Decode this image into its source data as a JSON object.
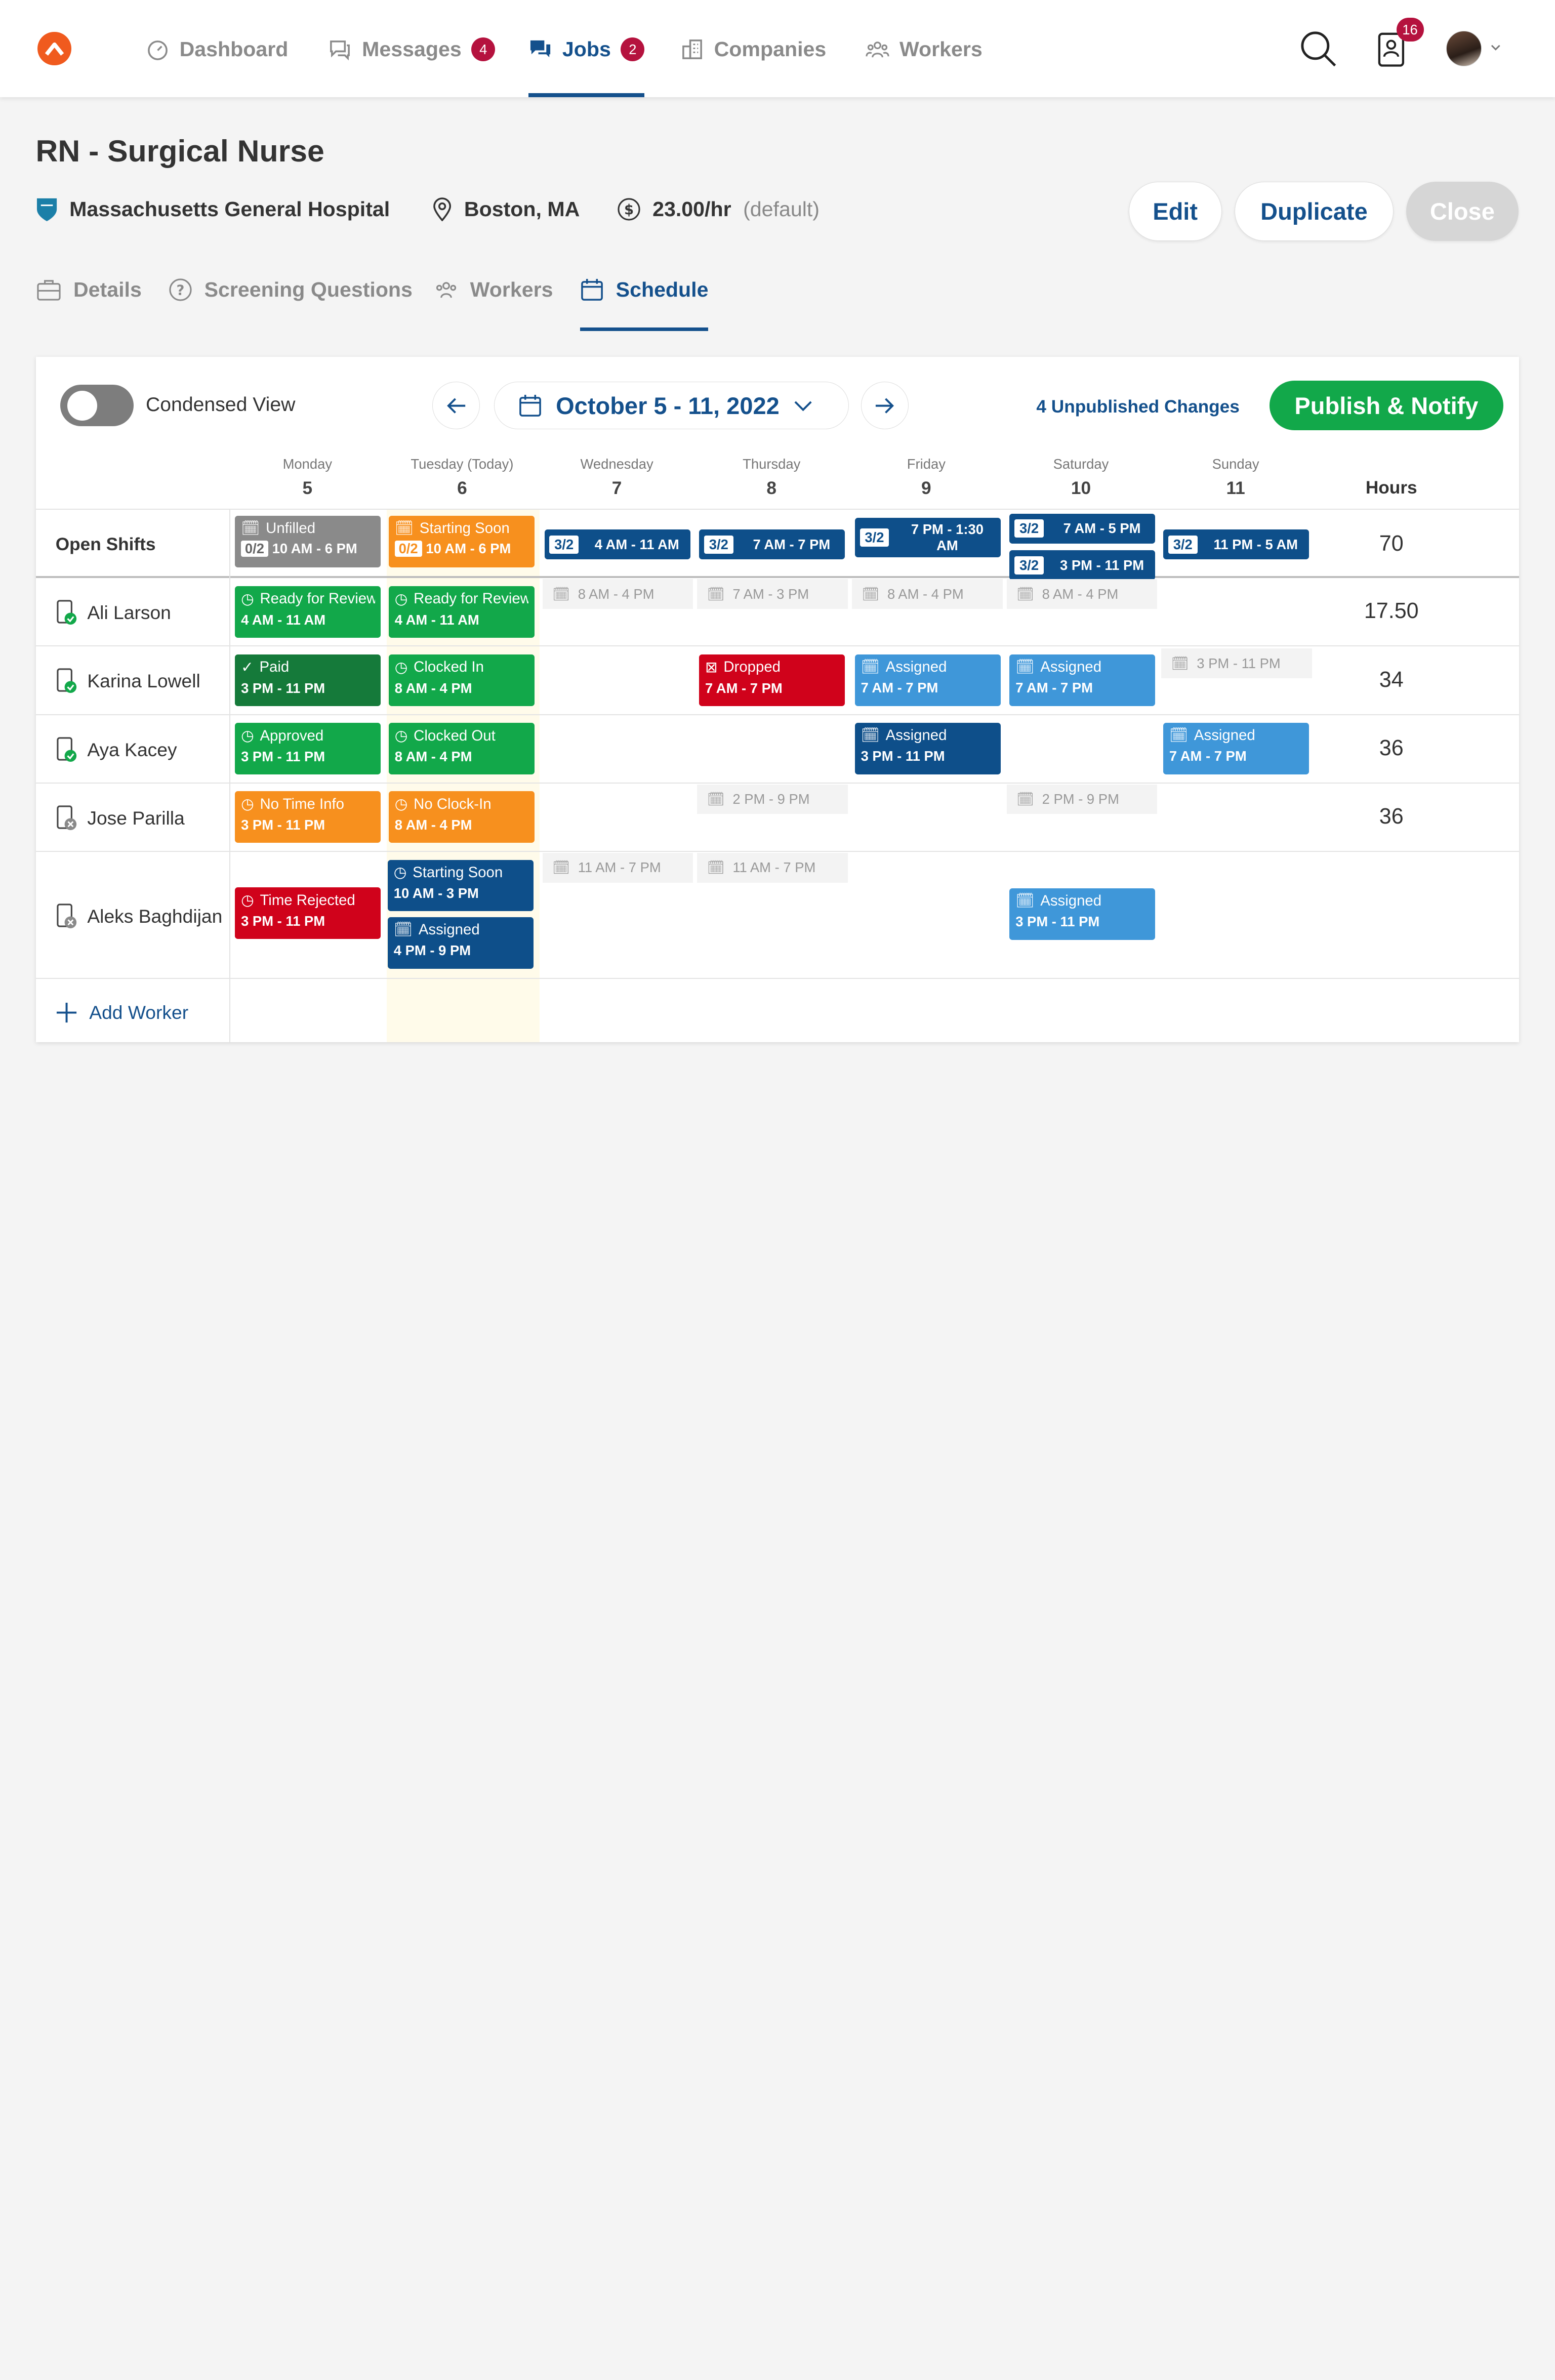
{
  "nav": {
    "items": [
      {
        "label": "Dashboard"
      },
      {
        "label": "Messages",
        "badge": "4"
      },
      {
        "label": "Jobs",
        "badge": "2"
      },
      {
        "label": "Companies"
      },
      {
        "label": "Workers"
      }
    ],
    "notification_count": "16"
  },
  "job": {
    "title": "RN - Surgical Nurse",
    "company": "Massachusetts General Hospital",
    "location": "Boston, MA",
    "rate": "23.00/hr",
    "rate_note": "(default)"
  },
  "actions": {
    "edit": "Edit",
    "duplicate": "Duplicate",
    "close": "Close"
  },
  "tabs": [
    {
      "label": "Details"
    },
    {
      "label": "Screening Questions"
    },
    {
      "label": "Workers"
    },
    {
      "label": "Schedule"
    }
  ],
  "toolbar": {
    "condensed_label": "Condensed View",
    "date_range": "October 5 - 11, 2022",
    "unpublished": "4 Unpublished Changes",
    "publish": "Publish & Notify"
  },
  "days": [
    {
      "name": "Monday",
      "date": "5"
    },
    {
      "name": "Tuesday (Today)",
      "date": "6"
    },
    {
      "name": "Wednesday",
      "date": "7"
    },
    {
      "name": "Thursday",
      "date": "8"
    },
    {
      "name": "Friday",
      "date": "9"
    },
    {
      "name": "Saturday",
      "date": "10"
    },
    {
      "name": "Sunday",
      "date": "11"
    }
  ],
  "hours_header": "Hours",
  "open_shifts": {
    "label": "Open Shifts",
    "hours": "70",
    "mon": {
      "status": "Unfilled",
      "frac": "0/2",
      "time": "10 AM - 6 PM"
    },
    "tue": {
      "status": "Starting Soon",
      "frac": "0/2",
      "time": "10 AM - 6 PM"
    },
    "wed": {
      "frac": "3/2",
      "time": "4 AM - 11 AM"
    },
    "thu": {
      "frac": "3/2",
      "time": "7 AM - 7 PM"
    },
    "fri": {
      "frac": "3/2",
      "time": "7 PM - 1:30 AM"
    },
    "sat1": {
      "frac": "3/2",
      "time": "7 AM - 5 PM"
    },
    "sat2": {
      "frac": "3/2",
      "time": "3 PM - 11 PM"
    },
    "sun": {
      "frac": "3/2",
      "time": "11 PM - 5 AM"
    }
  },
  "workers": [
    {
      "name": "Ali Larson",
      "hours": "17.50",
      "mon": {
        "status": "Ready for Review",
        "time": "4 AM - 11 AM"
      },
      "tue": {
        "status": "Ready for Review",
        "time": "4 AM - 11 AM"
      },
      "wed_avail": "8 AM - 4 PM",
      "thu_avail": "7 AM - 3 PM",
      "fri_avail": "8 AM - 4 PM",
      "sat_avail": "8 AM - 4 PM"
    },
    {
      "name": "Karina Lowell",
      "hours": "34",
      "mon": {
        "status": "Paid",
        "time": "3 PM - 11 PM"
      },
      "tue": {
        "status": "Clocked In",
        "time": "8 AM - 4 PM"
      },
      "thu": {
        "status": "Dropped",
        "time": "7 AM - 7 PM"
      },
      "fri": {
        "status": "Assigned",
        "time": "7 AM - 7 PM"
      },
      "sat": {
        "status": "Assigned",
        "time": "7 AM - 7 PM"
      },
      "sun_avail": "3 PM - 11 PM"
    },
    {
      "name": "Aya Kacey",
      "hours": "36",
      "mon": {
        "status": "Approved",
        "time": "3 PM - 11 PM"
      },
      "tue": {
        "status": "Clocked Out",
        "time": "8 AM - 4 PM"
      },
      "fri": {
        "status": "Assigned",
        "time": "3 PM - 11 PM"
      },
      "sun": {
        "status": "Assigned",
        "time": "7 AM - 7 PM"
      }
    },
    {
      "name": "Jose Parilla",
      "hours": "36",
      "mon": {
        "status": "No Time Info",
        "time": "3 PM - 11 PM"
      },
      "tue": {
        "status": "No Clock-In",
        "time": "8 AM - 4 PM"
      },
      "thu_avail": "2 PM - 9 PM",
      "sat_avail": "2 PM - 9 PM"
    },
    {
      "name": "Aleks Baghdijan",
      "mon": {
        "status": "Time Rejected",
        "time": "3 PM - 11 PM"
      },
      "tue1": {
        "status": "Starting Soon",
        "time": "10 AM - 3 PM"
      },
      "tue2": {
        "status": "Assigned",
        "time": "4 PM - 9 PM"
      },
      "wed_avail": "11 AM - 7 PM",
      "thu_avail": "11 AM - 7 PM",
      "sat": {
        "status": "Assigned",
        "time": "3 PM - 11 PM"
      }
    }
  ],
  "add_worker": "Add Worker",
  "colors": {
    "primary": "#14508c",
    "green": "#12a84a",
    "orange": "#f7901e",
    "red": "#d0021b",
    "badge": "#b5123e"
  }
}
